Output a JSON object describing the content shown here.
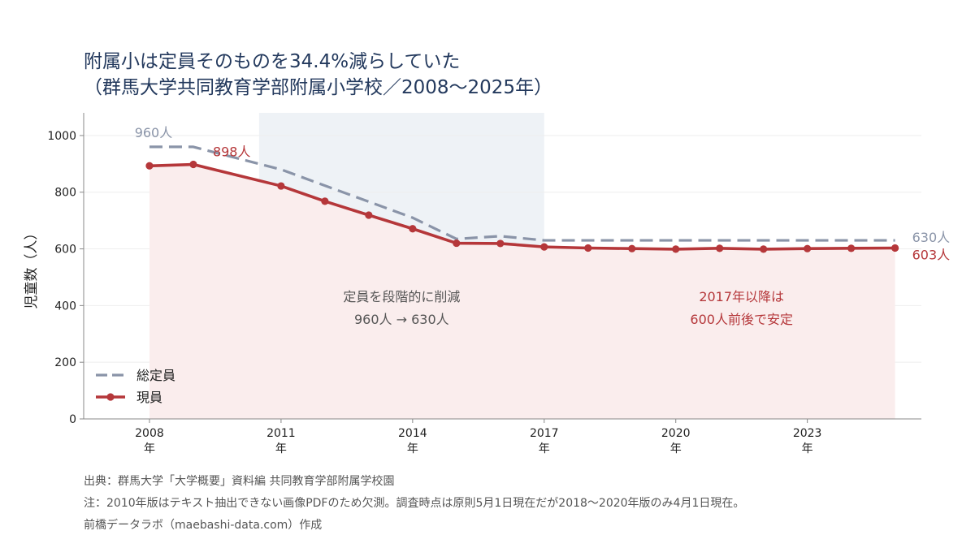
{
  "title": {
    "line1": "附属小は定員そのものを34.4%減らしていた",
    "line2": "（群馬大学共同教育学部附属小学校／2008〜2025年）"
  },
  "colors": {
    "capacity": "#8a94a8",
    "enrolled": "#b5373a",
    "enrolled_fill": "#faeded",
    "shade": "#eef2f6",
    "axis": "#888888",
    "grid": "#eeeeee",
    "title": "#23395d"
  },
  "chart_data": {
    "type": "line",
    "ylabel": "児童数（人）",
    "ylim": [
      0,
      1080
    ],
    "yticks": [
      0,
      200,
      400,
      600,
      800,
      1000
    ],
    "xlim": [
      2006.5,
      2025.6
    ],
    "xticks": [
      {
        "value": 2008,
        "label": [
          "2008",
          "年"
        ]
      },
      {
        "value": 2011,
        "label": [
          "2011",
          "年"
        ]
      },
      {
        "value": 2014,
        "label": [
          "2014",
          "年"
        ]
      },
      {
        "value": 2017,
        "label": [
          "2017",
          "年"
        ]
      },
      {
        "value": 2020,
        "label": [
          "2020",
          "年"
        ]
      },
      {
        "value": 2023,
        "label": [
          "2023",
          "年"
        ]
      }
    ],
    "shaded_range": [
      2010.5,
      2017
    ],
    "series": [
      {
        "name": "総定員",
        "style": "dashed",
        "x": [
          2008,
          2009,
          2011,
          2014,
          2015,
          2016,
          2017,
          2018,
          2019,
          2020,
          2021,
          2022,
          2023,
          2024,
          2025
        ],
        "y": [
          960,
          960,
          880,
          710,
          635,
          645,
          630,
          630,
          630,
          630,
          630,
          630,
          630,
          630,
          630
        ]
      },
      {
        "name": "現員",
        "style": "solid-markers",
        "x": [
          2008,
          2009,
          2011,
          2012,
          2013,
          2014,
          2015,
          2016,
          2017,
          2018,
          2019,
          2020,
          2021,
          2022,
          2023,
          2024,
          2025
        ],
        "y": [
          893,
          898,
          822,
          768,
          719,
          671,
          620,
          619,
          607,
          603,
          601,
          599,
          602,
          599,
          601,
          602,
          603
        ]
      }
    ],
    "point_labels": [
      {
        "text": "960人",
        "series": 0,
        "x": 2008,
        "y": 960
      },
      {
        "text": "898人",
        "series": 1,
        "x": 2009,
        "y": 898
      },
      {
        "text": "630人",
        "series": 0,
        "x": 2025,
        "y": 630
      },
      {
        "text": "603人",
        "series": 1,
        "x": 2025,
        "y": 603
      }
    ],
    "annotations": [
      {
        "lines": [
          "定員を段階的に削減",
          "960人 → 630人"
        ],
        "x": 2013.75,
        "y": 415,
        "color": "gray"
      },
      {
        "lines": [
          "2017年以降は",
          "600人前後で安定"
        ],
        "x": 2021.5,
        "y": 415,
        "color": "red"
      }
    ],
    "legend": {
      "placement": "bottom-left",
      "entries": [
        "総定員",
        "現員"
      ]
    }
  },
  "notes": {
    "source": "出典：群馬大学「大学概要」資料編 共同教育学部附属学校園",
    "note": "注：2010年版はテキスト抽出できない画像PDFのため欠測。調査時点は原則5月1日現在だが2018〜2020年版のみ4月1日現在。",
    "credit": "前橋データラボ（maebashi-data.com）作成"
  }
}
